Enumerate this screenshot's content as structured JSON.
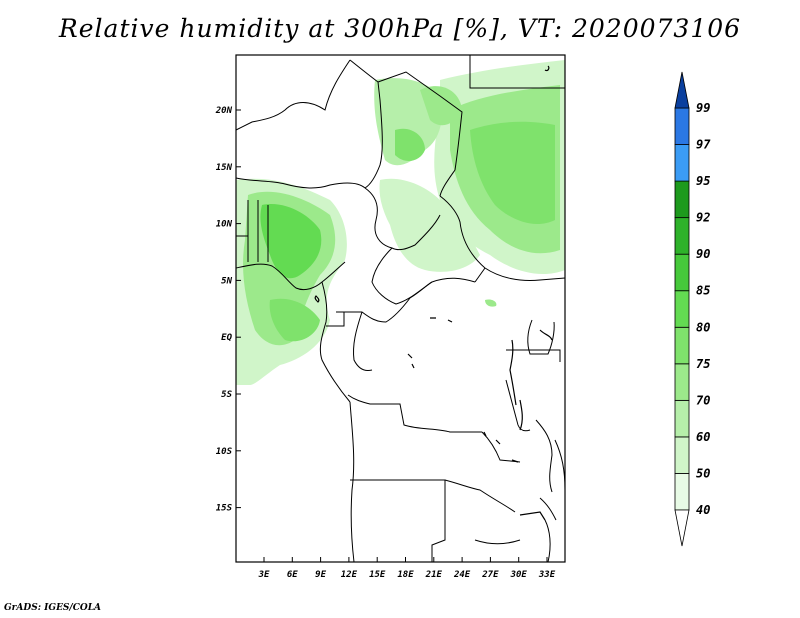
{
  "title": "Relative humidity at 300hPa [%], VT: 2020073106",
  "credit": "GrADS: IGES/COLA",
  "map": {
    "lat_ticks": [
      "20N",
      "15N",
      "10N",
      "5N",
      "EQ",
      "5S",
      "10S",
      "15S"
    ],
    "lon_ticks": [
      "3E",
      "6E",
      "9E",
      "12E",
      "15E",
      "18E",
      "21E",
      "24E",
      "27E",
      "30E",
      "33E"
    ]
  },
  "colorbar": {
    "levels": [
      "40",
      "50",
      "60",
      "70",
      "75",
      "80",
      "85",
      "90",
      "92",
      "95",
      "97",
      "99"
    ],
    "colors": [
      "#e8fbe6",
      "#d0f5c9",
      "#b6efaa",
      "#9ce98b",
      "#7fe26c",
      "#63db52",
      "#46c93b",
      "#2eb22a",
      "#1d9a1d",
      "#3b9cf5",
      "#2b78e4",
      "#1c5cc4",
      "#0a3f9e"
    ]
  }
}
